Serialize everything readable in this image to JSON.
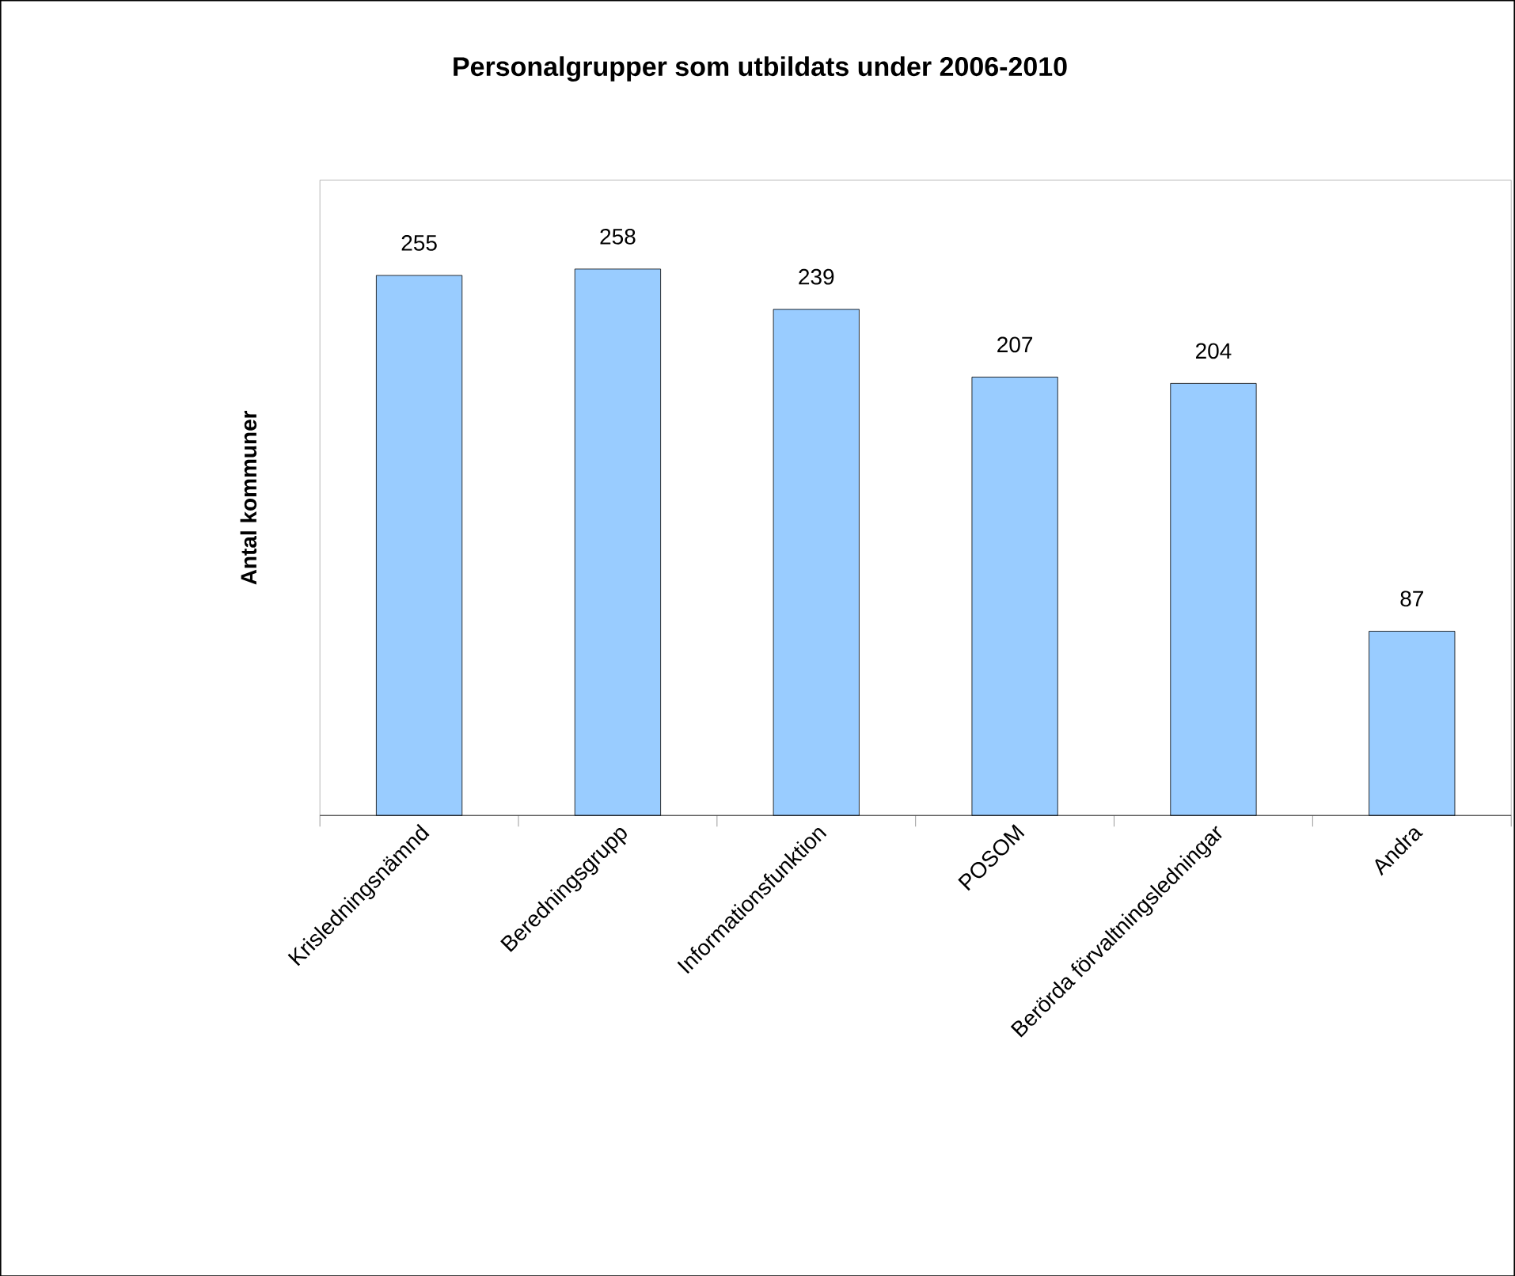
{
  "chart_data": {
    "type": "bar",
    "title": "Personalgrupper som utbildats under 2006-2010",
    "ylabel": "Antal kommuner",
    "categories": [
      "Krisledningsnämnd",
      "Beredningsgrupp",
      "Informationsfunktion",
      "POSOM",
      "Berörda förvaltningsledningar",
      "Andra"
    ],
    "values": [
      255,
      258,
      239,
      207,
      204,
      87
    ],
    "color": "#99ccff",
    "ylim": [
      0,
      300
    ],
    "data_labels": true,
    "grid": false,
    "tick_labels": "x"
  }
}
